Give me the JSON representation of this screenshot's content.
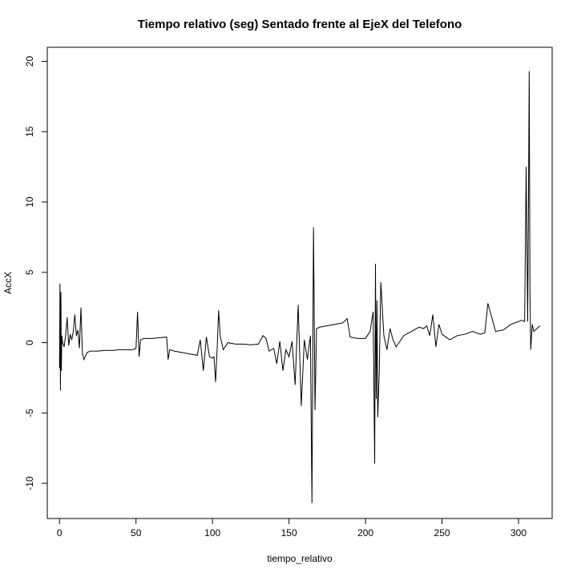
{
  "chart_data": {
    "type": "line",
    "title": "Tiempo relativo (seg) Sentado frente al EjeX del Telefono",
    "xlabel": "tiempo_relativo",
    "ylabel": "AccX",
    "xlim": [
      -8,
      322
    ],
    "ylim": [
      -12.5,
      21
    ],
    "xticks": [
      0,
      50,
      100,
      150,
      200,
      250,
      300
    ],
    "yticks": [
      -10,
      -5,
      0,
      5,
      10,
      15,
      20
    ],
    "series": [
      {
        "color": "#000000",
        "x": [
          0,
          0.3,
          0.6,
          0.9,
          1.2,
          1.5,
          2,
          3,
          4,
          5,
          6,
          7,
          8,
          9,
          10,
          11,
          12,
          13,
          14,
          15,
          16,
          18,
          20,
          25,
          30,
          35,
          40,
          45,
          48,
          50,
          51,
          52,
          53,
          55,
          60,
          65,
          70,
          71,
          72,
          75,
          80,
          85,
          90,
          92,
          94,
          96,
          98,
          100,
          101,
          102,
          103,
          104,
          105,
          107,
          110,
          115,
          120,
          125,
          130,
          133,
          135,
          137,
          140,
          142,
          144,
          146,
          148,
          150,
          152,
          154,
          156,
          158,
          160,
          162,
          164,
          165,
          166,
          167,
          168,
          170,
          175,
          180,
          185,
          188,
          190,
          195,
          200,
          203,
          205,
          206,
          206.5,
          207,
          207.5,
          208,
          209,
          210,
          212,
          214,
          216,
          218,
          220,
          225,
          230,
          235,
          238,
          240,
          242,
          244,
          246,
          248,
          250,
          255,
          260,
          265,
          270,
          275,
          278,
          280,
          285,
          290,
          295,
          300,
          302,
          304,
          305,
          306,
          306.5,
          307,
          307.5,
          308,
          309,
          310,
          312,
          314
        ],
        "y": [
          -1.8,
          4.2,
          -3.4,
          3.6,
          -2.0,
          0.5,
          0.0,
          -0.3,
          0.5,
          1.8,
          -0.2,
          0.6,
          0.2,
          0.8,
          2.0,
          0.5,
          0.9,
          -0.4,
          2.5,
          -0.8,
          -1.2,
          -0.7,
          -0.6,
          -0.6,
          -0.55,
          -0.55,
          -0.5,
          -0.5,
          -0.5,
          -0.4,
          2.2,
          -1.0,
          0.2,
          0.3,
          0.3,
          0.35,
          0.4,
          -1.2,
          -0.5,
          -0.6,
          -0.7,
          -0.8,
          -0.9,
          0.2,
          -2.0,
          0.4,
          -1.0,
          -1.1,
          -1.0,
          -2.8,
          -0.5,
          2.3,
          0.5,
          -0.5,
          0.0,
          -0.1,
          -0.1,
          -0.15,
          -0.1,
          0.5,
          0.3,
          -0.6,
          -0.4,
          -1.5,
          0.1,
          -2.0,
          -0.5,
          -1.0,
          0.1,
          -3.0,
          2.7,
          -4.5,
          0.2,
          -1.2,
          0.5,
          -11.4,
          8.2,
          -4.8,
          1.0,
          1.1,
          1.2,
          1.3,
          1.4,
          1.7,
          0.4,
          0.3,
          0.3,
          0.8,
          2.2,
          -8.6,
          5.6,
          -4.0,
          3.0,
          -5.3,
          -2.0,
          4.3,
          0.5,
          -0.5,
          1.0,
          0.2,
          -0.3,
          0.5,
          0.8,
          1.1,
          1.0,
          1.2,
          0.5,
          2.0,
          -0.3,
          1.3,
          0.6,
          0.2,
          0.5,
          0.6,
          0.8,
          0.6,
          0.7,
          2.8,
          0.8,
          0.9,
          1.3,
          1.5,
          1.6,
          1.5,
          12.5,
          1.5,
          9.5,
          19.3,
          3.5,
          -0.5,
          1.3,
          0.8,
          1.0,
          1.2
        ]
      }
    ]
  }
}
